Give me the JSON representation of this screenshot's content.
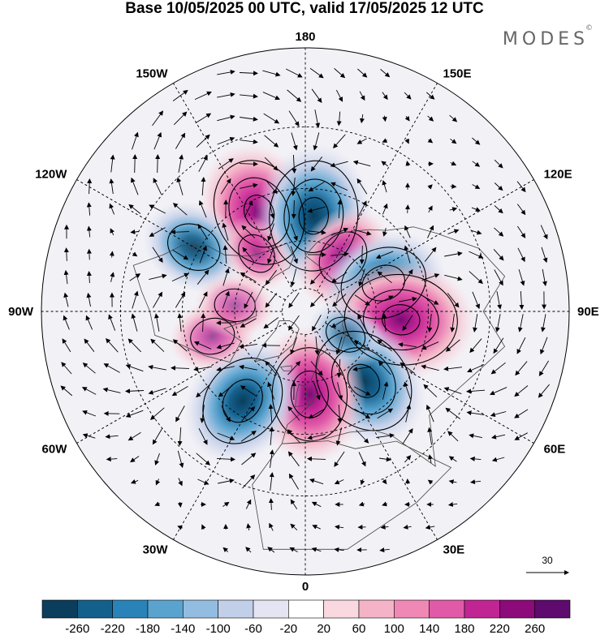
{
  "title": "Base 10/05/2025 00 UTC, valid 17/05/2025 12 UTC",
  "brand": "MODES",
  "brand_mark": "©",
  "map": {
    "projection": "north-polar-stereographic",
    "longitude_labels": [
      {
        "text": "180",
        "lon": 180
      },
      {
        "text": "150E",
        "lon": 150
      },
      {
        "text": "120E",
        "lon": 120
      },
      {
        "text": "90E",
        "lon": 90
      },
      {
        "text": "60E",
        "lon": 60
      },
      {
        "text": "30E",
        "lon": 30
      },
      {
        "text": "0",
        "lon": 0
      },
      {
        "text": "30W",
        "lon": -30
      },
      {
        "text": "60W",
        "lon": -60
      },
      {
        "text": "90W",
        "lon": -90
      },
      {
        "text": "120W",
        "lon": -120
      },
      {
        "text": "150W",
        "lon": -150
      }
    ],
    "anomaly_centers": [
      {
        "lon": -155,
        "lat": 45,
        "value": 240
      },
      {
        "lon": 175,
        "lat": 50,
        "value": -250
      },
      {
        "lon": 145,
        "lat": 62,
        "value": 140
      },
      {
        "lon": -120,
        "lat": 38,
        "value": -140
      },
      {
        "lon": 110,
        "lat": 55,
        "value": -200
      },
      {
        "lon": 85,
        "lat": 50,
        "value": 260
      },
      {
        "lon": 40,
        "lat": 52,
        "value": -240
      },
      {
        "lon": 3,
        "lat": 55,
        "value": 230
      },
      {
        "lon": -35,
        "lat": 45,
        "value": -220
      },
      {
        "lon": -75,
        "lat": 50,
        "value": 80
      },
      {
        "lon": -95,
        "lat": 60,
        "value": 60
      },
      {
        "lon": 60,
        "lat": 70,
        "value": -60
      },
      {
        "lon": -140,
        "lat": 58,
        "value": 60
      }
    ],
    "reference_vector": "30"
  },
  "colorbar": {
    "colors": [
      "#0b3d5c",
      "#14608d",
      "#2a83b8",
      "#5aa3cf",
      "#93bde0",
      "#c2cfe8",
      "#e5e4f3",
      "#ffffff",
      "#f9d9df",
      "#f4b3c7",
      "#ef88b5",
      "#e15aa8",
      "#c12594",
      "#8c0a7a",
      "#5e0a6e"
    ],
    "labels": [
      "-260",
      "-220",
      "-180",
      "-140",
      "-100",
      "-60",
      "-20",
      "20",
      "60",
      "100",
      "140",
      "180",
      "220",
      "260"
    ]
  }
}
